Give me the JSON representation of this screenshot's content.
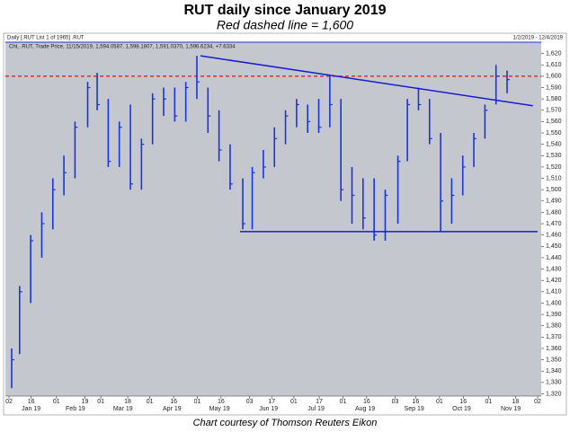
{
  "chart_data": {
    "type": "ohlc",
    "title": "RUT daily since January 2019",
    "subtitle": "Red dashed line = 1,600",
    "header": "Daily [.RUT List 1 of 1965] .RUT",
    "legend_text": "Cht, .RUT, Trade Price, 11/15/2019, 1,594.0587, 1,598.1807, 1,591.0370, 1,596.6234, +7.6334",
    "date_range": "1/2/2019 - 12/4/2019",
    "footer": "Chart courtesy of Thomson Reuters Eikon",
    "color": "#1a33e0",
    "x": [
      "2019-01-02",
      "2019-01-07",
      "2019-01-14",
      "2019-01-21",
      "2019-01-28",
      "2019-02-04",
      "2019-02-11",
      "2019-02-19",
      "2019-02-25",
      "2019-03-04",
      "2019-03-11",
      "2019-03-18",
      "2019-03-25",
      "2019-04-01",
      "2019-04-08",
      "2019-04-15",
      "2019-04-22",
      "2019-04-29",
      "2019-05-06",
      "2019-05-13",
      "2019-05-20",
      "2019-05-28",
      "2019-06-03",
      "2019-06-10",
      "2019-06-17",
      "2019-06-24",
      "2019-07-01",
      "2019-07-08",
      "2019-07-15",
      "2019-07-22",
      "2019-07-29",
      "2019-08-05",
      "2019-08-12",
      "2019-08-19",
      "2019-08-26",
      "2019-09-03",
      "2019-09-09",
      "2019-09-16",
      "2019-09-23",
      "2019-09-30",
      "2019-10-07",
      "2019-10-14",
      "2019-10-21",
      "2019-10-28",
      "2019-11-04",
      "2019-11-11"
    ],
    "high": [
      1360,
      1415,
      1460,
      1480,
      1510,
      1530,
      1560,
      1595,
      1603,
      1580,
      1560,
      1575,
      1545,
      1585,
      1590,
      1590,
      1595,
      1618,
      1590,
      1570,
      1540,
      1510,
      1520,
      1535,
      1555,
      1570,
      1580,
      1575,
      1580,
      1600,
      1580,
      1520,
      1510,
      1510,
      1500,
      1530,
      1580,
      1590,
      1580,
      1550,
      1510,
      1530,
      1550,
      1575,
      1610,
      1605
    ],
    "low": [
      1325,
      1355,
      1400,
      1440,
      1465,
      1495,
      1510,
      1555,
      1570,
      1520,
      1520,
      1500,
      1500,
      1540,
      1565,
      1560,
      1560,
      1580,
      1550,
      1525,
      1500,
      1465,
      1465,
      1510,
      1520,
      1540,
      1555,
      1550,
      1550,
      1555,
      1490,
      1470,
      1465,
      1455,
      1455,
      1470,
      1525,
      1570,
      1540,
      1463,
      1470,
      1495,
      1520,
      1545,
      1575,
      1585
    ],
    "close": [
      1350,
      1410,
      1455,
      1470,
      1500,
      1515,
      1555,
      1590,
      1575,
      1525,
      1555,
      1505,
      1540,
      1580,
      1580,
      1565,
      1590,
      1595,
      1565,
      1535,
      1505,
      1470,
      1515,
      1520,
      1545,
      1565,
      1575,
      1560,
      1555,
      1575,
      1500,
      1495,
      1475,
      1460,
      1495,
      1525,
      1575,
      1575,
      1545,
      1490,
      1495,
      1520,
      1545,
      1570,
      1600,
      1597
    ],
    "reference_line": 1600,
    "trendlines": [
      {
        "x": [
          "2019-05-03",
          "2019-11-29"
        ],
        "y": [
          1618,
          1574
        ]
      },
      {
        "x": [
          "2019-05-28",
          "2019-12-02"
        ],
        "y": [
          1463,
          1463
        ]
      }
    ],
    "xlim": [
      "2019-01-02",
      "2019-12-02"
    ],
    "ylim": [
      1318,
      1630
    ],
    "xticks": [
      {
        "value": "2019-01-02",
        "label": "02"
      },
      {
        "value": "2019-01-16",
        "label": "16"
      },
      {
        "value": "2019-02-01",
        "label": "01"
      },
      {
        "value": "2019-02-19",
        "label": "19"
      },
      {
        "value": "2019-03-01",
        "label": "01"
      },
      {
        "value": "2019-03-18",
        "label": "18"
      },
      {
        "value": "2019-04-01",
        "label": "01"
      },
      {
        "value": "2019-04-16",
        "label": "16"
      },
      {
        "value": "2019-05-01",
        "label": "01"
      },
      {
        "value": "2019-05-16",
        "label": "16"
      },
      {
        "value": "2019-06-03",
        "label": "03"
      },
      {
        "value": "2019-06-17",
        "label": "17"
      },
      {
        "value": "2019-07-01",
        "label": "01"
      },
      {
        "value": "2019-07-17",
        "label": "17"
      },
      {
        "value": "2019-08-01",
        "label": "01"
      },
      {
        "value": "2019-08-16",
        "label": "16"
      },
      {
        "value": "2019-09-03",
        "label": "03"
      },
      {
        "value": "2019-09-16",
        "label": "16"
      },
      {
        "value": "2019-10-01",
        "label": "01"
      },
      {
        "value": "2019-10-16",
        "label": "16"
      },
      {
        "value": "2019-11-01",
        "label": "01"
      },
      {
        "value": "2019-11-18",
        "label": "18"
      },
      {
        "value": "2019-12-02",
        "label": "02"
      }
    ],
    "month_labels": [
      {
        "value": "2019-01-16",
        "label": "Jan 19"
      },
      {
        "value": "2019-02-13",
        "label": "Feb 19"
      },
      {
        "value": "2019-03-15",
        "label": "Mar 19"
      },
      {
        "value": "2019-04-15",
        "label": "Apr 19"
      },
      {
        "value": "2019-05-15",
        "label": "May 19"
      },
      {
        "value": "2019-06-15",
        "label": "Jun 19"
      },
      {
        "value": "2019-07-15",
        "label": "Jul 19"
      },
      {
        "value": "2019-08-15",
        "label": "Aug 19"
      },
      {
        "value": "2019-09-15",
        "label": "Sep 19"
      },
      {
        "value": "2019-10-15",
        "label": "Oct 19"
      },
      {
        "value": "2019-11-15",
        "label": "Nov 19"
      }
    ],
    "yticks": [
      {
        "value": 1320,
        "label": "1,320"
      },
      {
        "value": 1330,
        "label": "1,330"
      },
      {
        "value": 1340,
        "label": "1,340"
      },
      {
        "value": 1350,
        "label": "1,350"
      },
      {
        "value": 1360,
        "label": "1,360"
      },
      {
        "value": 1370,
        "label": "1,370"
      },
      {
        "value": 1380,
        "label": "1,380"
      },
      {
        "value": 1390,
        "label": "1,390"
      },
      {
        "value": 1400,
        "label": "1,400"
      },
      {
        "value": 1410,
        "label": "1,410"
      },
      {
        "value": 1420,
        "label": "1,420"
      },
      {
        "value": 1430,
        "label": "1,430"
      },
      {
        "value": 1440,
        "label": "1,440"
      },
      {
        "value": 1450,
        "label": "1,450"
      },
      {
        "value": 1460,
        "label": "1,460"
      },
      {
        "value": 1470,
        "label": "1,470"
      },
      {
        "value": 1480,
        "label": "1,480"
      },
      {
        "value": 1490,
        "label": "1,490"
      },
      {
        "value": 1500,
        "label": "1,500"
      },
      {
        "value": 1510,
        "label": "1,510"
      },
      {
        "value": 1520,
        "label": "1,520"
      },
      {
        "value": 1530,
        "label": "1,530"
      },
      {
        "value": 1540,
        "label": "1,540"
      },
      {
        "value": 1550,
        "label": "1,550"
      },
      {
        "value": 1560,
        "label": "1,560"
      },
      {
        "value": 1570,
        "label": "1,570"
      },
      {
        "value": 1580,
        "label": "1,580"
      },
      {
        "value": 1590,
        "label": "1,590"
      },
      {
        "value": 1600,
        "label": "1,600"
      },
      {
        "value": 1610,
        "label": "1,610"
      },
      {
        "value": 1620,
        "label": "1,620"
      }
    ]
  }
}
